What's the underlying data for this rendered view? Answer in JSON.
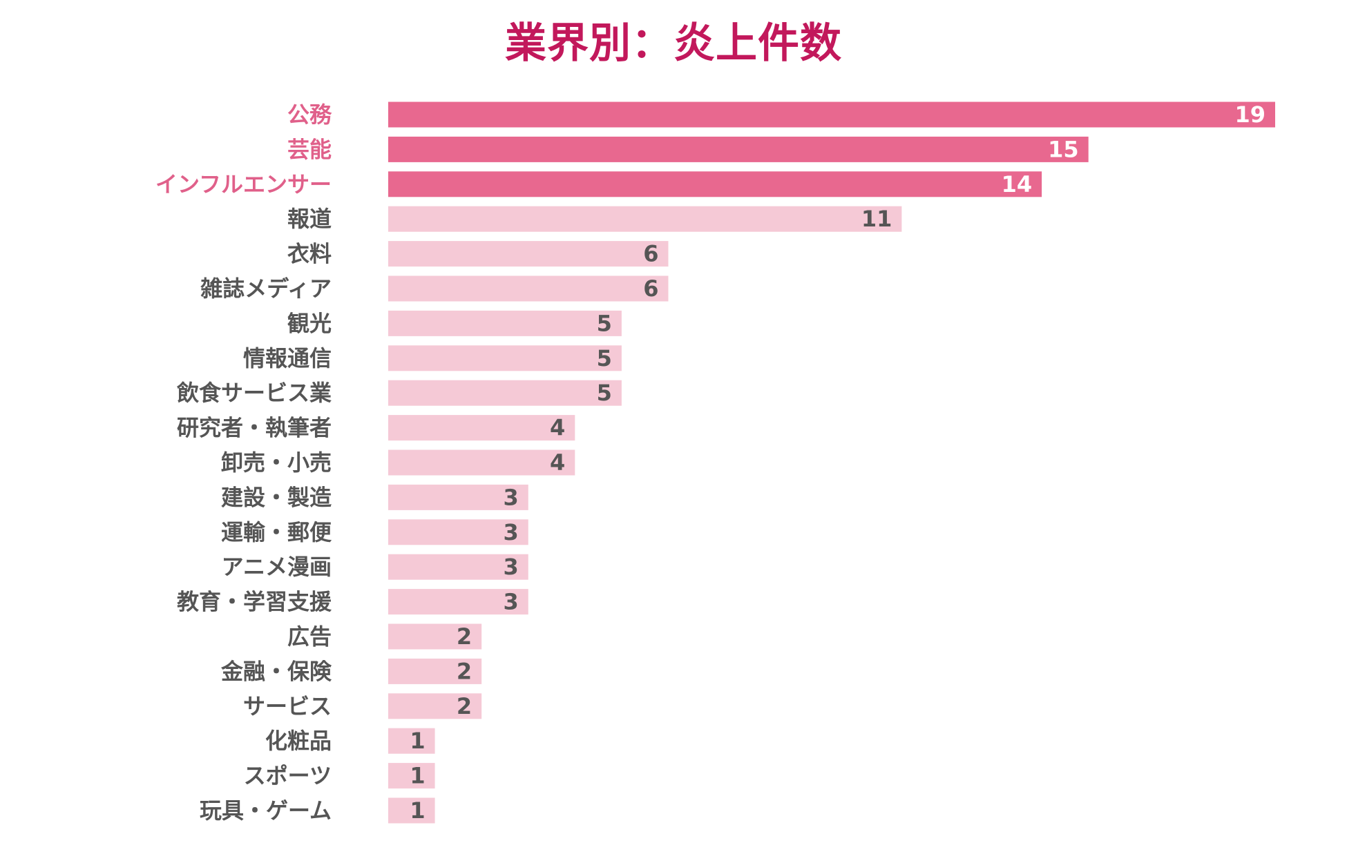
{
  "chart_data": {
    "type": "bar",
    "orientation": "horizontal",
    "title": "業界別：炎上件数",
    "xlabel": "",
    "ylabel": "",
    "xlim": [
      0,
      19
    ],
    "grid": false,
    "legend": "none",
    "categories": [
      "公務",
      "芸能",
      "インフルエンサー",
      "報道",
      "衣料",
      "雑誌メディア",
      "観光",
      "情報通信",
      "飲食サービス業",
      "研究者・執筆者",
      "卸売・小売",
      "建設・製造",
      "運輸・郵便",
      "アニメ漫画",
      "教育・学習支援",
      "広告",
      "金融・保険",
      "サービス",
      "化粧品",
      "スポーツ",
      "玩具・ゲーム"
    ],
    "values": [
      19,
      15,
      14,
      11,
      6,
      6,
      5,
      5,
      5,
      4,
      4,
      3,
      3,
      3,
      3,
      2,
      2,
      2,
      1,
      1,
      1
    ],
    "highlight_top_n": 3,
    "colors": {
      "title": "#c2185b",
      "highlight_bar": "#e8688f",
      "highlight_label": "#e0608a",
      "highlight_value": "#ffffff",
      "normal_bar": "#f5c9d6",
      "normal_label": "#555555",
      "normal_value": "#555555"
    }
  }
}
